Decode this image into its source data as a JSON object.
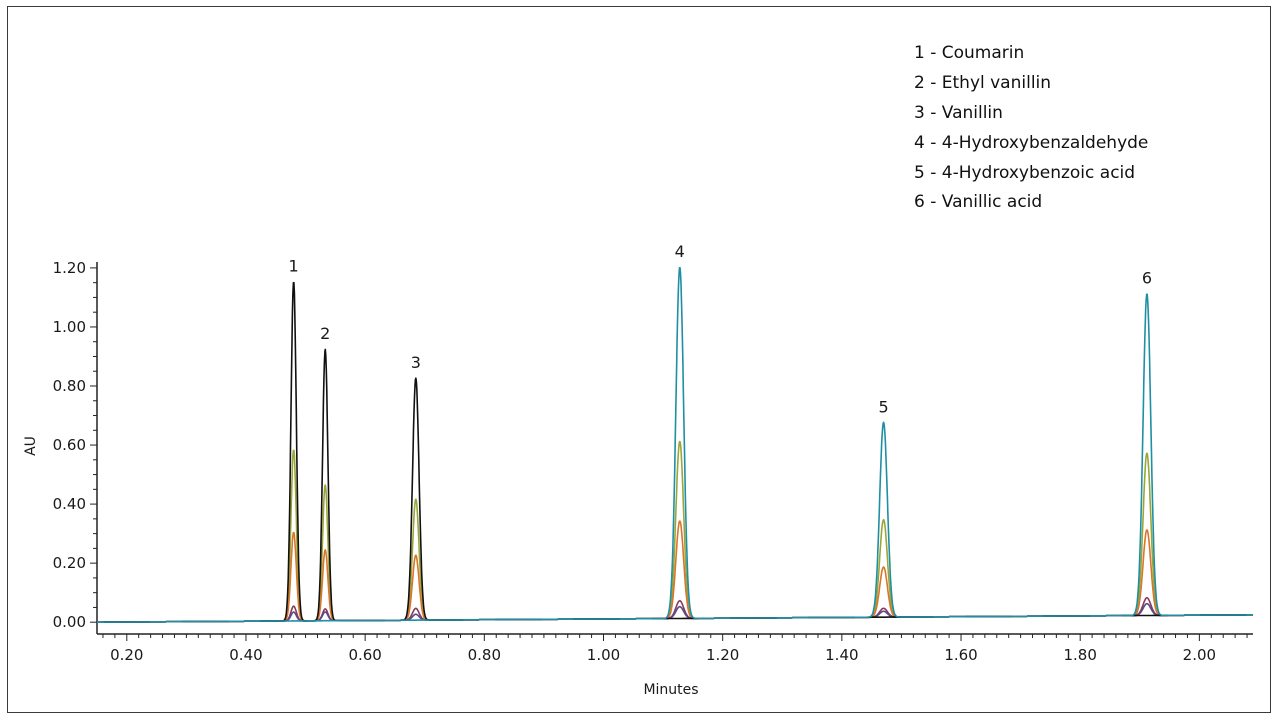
{
  "chart_data": {
    "type": "line",
    "xlabel": "Minutes",
    "ylabel": "AU",
    "xlim": [
      0.15,
      2.09
    ],
    "ylim": [
      -0.04,
      1.22
    ],
    "x_ticks": [
      "0.20",
      "0.40",
      "0.60",
      "0.80",
      "1.00",
      "1.20",
      "1.40",
      "1.60",
      "1.80",
      "2.00"
    ],
    "x_tick_values": [
      0.2,
      0.4,
      0.6,
      0.8,
      1.0,
      1.2,
      1.4,
      1.6,
      1.8,
      2.0
    ],
    "y_ticks": [
      "0.00",
      "0.20",
      "0.40",
      "0.60",
      "0.80",
      "1.00",
      "1.20"
    ],
    "y_tick_values": [
      0.0,
      0.2,
      0.4,
      0.6,
      0.8,
      1.0,
      1.2
    ],
    "grid": false,
    "legend_position": "top-right",
    "legend": [
      "1 - Coumarin",
      "2 - Ethyl vanillin",
      "3 - Vanillin",
      "4 - 4-Hydroxybenzaldehyde",
      "5 - 4-Hydroxybenzoic acid",
      "6 - Vanillic acid"
    ],
    "peaks": [
      {
        "label": "1",
        "x": 0.48,
        "width": 0.0045
      },
      {
        "label": "2",
        "x": 0.533,
        "width": 0.0045
      },
      {
        "label": "3",
        "x": 0.685,
        "width": 0.0055
      },
      {
        "label": "4",
        "x": 1.128,
        "width": 0.0065
      },
      {
        "label": "5",
        "x": 1.47,
        "width": 0.0065
      },
      {
        "label": "6",
        "x": 1.912,
        "width": 0.0065
      }
    ],
    "baseline": {
      "start": 0.0,
      "end": 0.025
    },
    "series": [
      {
        "color": "#111111",
        "heights": [
          1.15,
          0.92,
          0.82,
          0.0,
          0.0,
          0.0
        ]
      },
      {
        "color": "#1f8fa3",
        "heights": [
          0.0,
          0.0,
          0.0,
          1.19,
          0.66,
          1.09
        ]
      },
      {
        "color": "#9aa63a",
        "heights": [
          0.58,
          0.46,
          0.41,
          0.6,
          0.33,
          0.55
        ]
      },
      {
        "color": "#d9762b",
        "heights": [
          0.3,
          0.24,
          0.22,
          0.33,
          0.17,
          0.29
        ]
      },
      {
        "color": "#8a3a5a",
        "heights": [
          0.05,
          0.04,
          0.04,
          0.06,
          0.03,
          0.06
        ]
      },
      {
        "color": "#5a4a8a",
        "heights": [
          0.03,
          0.03,
          0.02,
          0.04,
          0.02,
          0.04
        ]
      }
    ]
  }
}
